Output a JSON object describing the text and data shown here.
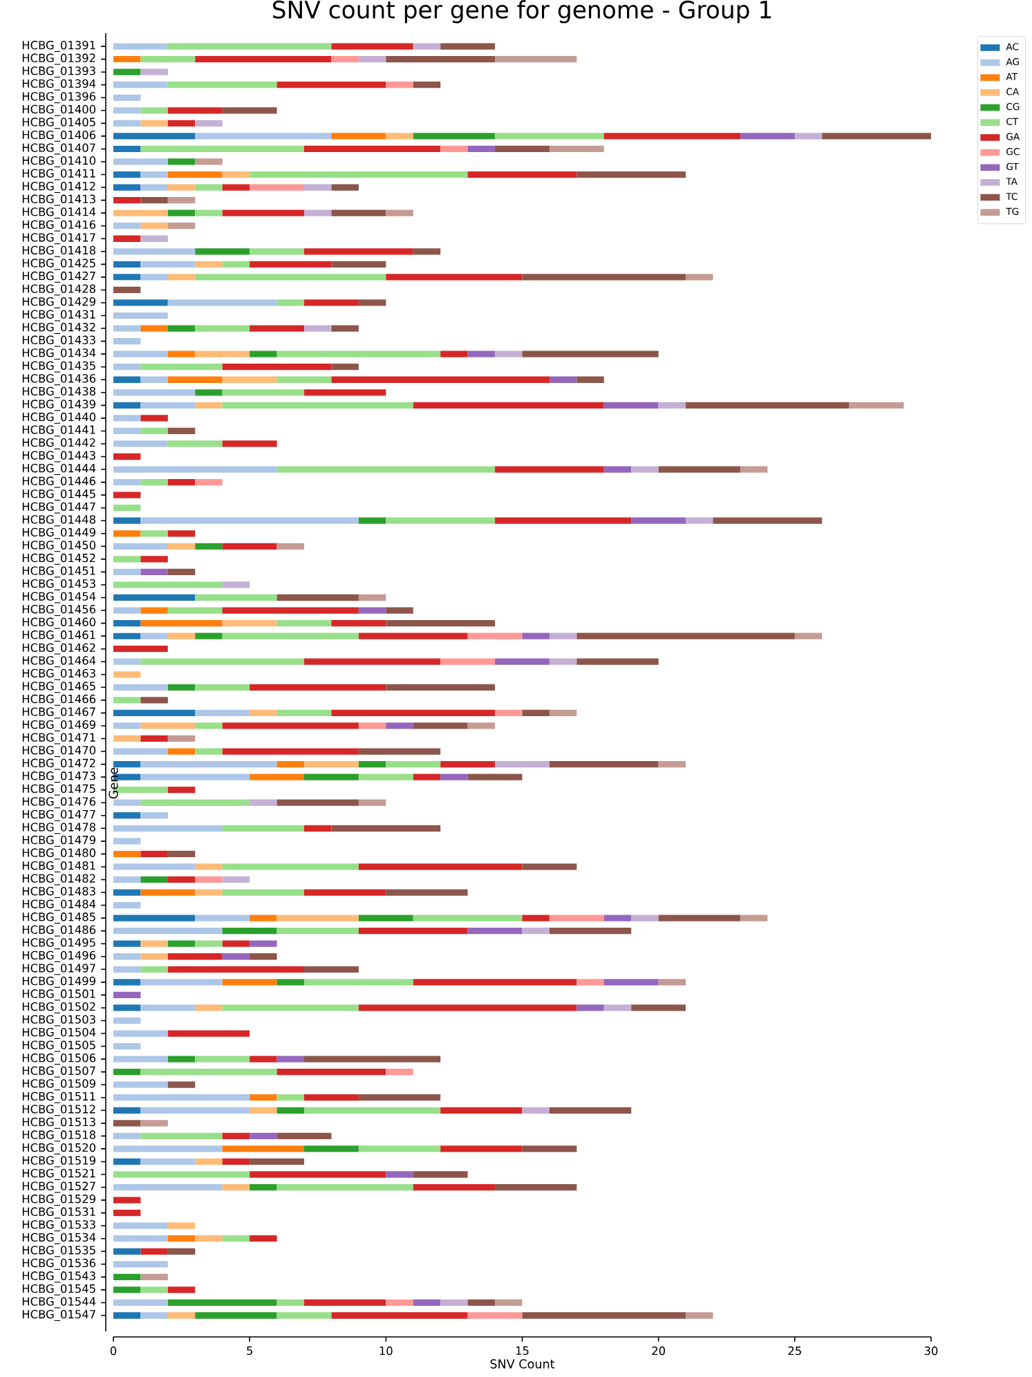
{
  "chart_data": {
    "type": "bar",
    "orientation": "horizontal",
    "stacked": true,
    "title": "SNV count per gene for genome - Group 1",
    "xlabel": "SNV Count",
    "ylabel": "Gene",
    "categories": [
      "HCBG_01391",
      "HCBG_01392",
      "HCBG_01393",
      "HCBG_01394",
      "HCBG_01396",
      "HCBG_01400",
      "HCBG_01405",
      "HCBG_01406",
      "HCBG_01407",
      "HCBG_01410",
      "HCBG_01411",
      "HCBG_01412",
      "HCBG_01413",
      "HCBG_01414",
      "HCBG_01416",
      "HCBG_01417",
      "HCBG_01418",
      "HCBG_01425",
      "HCBG_01427",
      "HCBG_01428",
      "HCBG_01429",
      "HCBG_01431",
      "HCBG_01432",
      "HCBG_01433",
      "HCBG_01434",
      "HCBG_01435",
      "HCBG_01436",
      "HCBG_01438",
      "HCBG_01439",
      "HCBG_01440",
      "HCBG_01441",
      "HCBG_01442",
      "HCBG_01443",
      "HCBG_01444",
      "HCBG_01446",
      "HCBG_01445",
      "HCBG_01447",
      "HCBG_01448",
      "HCBG_01449",
      "HCBG_01450",
      "HCBG_01452",
      "HCBG_01451",
      "HCBG_01453",
      "HCBG_01454",
      "HCBG_01456",
      "HCBG_01460",
      "HCBG_01461",
      "HCBG_01462",
      "HCBG_01464",
      "HCBG_01463",
      "HCBG_01465",
      "HCBG_01466",
      "HCBG_01467",
      "HCBG_01469",
      "HCBG_01471",
      "HCBG_01470",
      "HCBG_01472",
      "HCBG_01473",
      "HCBG_01475",
      "HCBG_01476",
      "HCBG_01477",
      "HCBG_01478",
      "HCBG_01479",
      "HCBG_01480",
      "HCBG_01481",
      "HCBG_01482",
      "HCBG_01483",
      "HCBG_01484",
      "HCBG_01485",
      "HCBG_01486",
      "HCBG_01495",
      "HCBG_01496",
      "HCBG_01497",
      "HCBG_01499",
      "HCBG_01501",
      "HCBG_01502",
      "HCBG_01503",
      "HCBG_01504",
      "HCBG_01505",
      "HCBG_01506",
      "HCBG_01507",
      "HCBG_01509",
      "HCBG_01511",
      "HCBG_01512",
      "HCBG_01513",
      "HCBG_01518",
      "HCBG_01520",
      "HCBG_01519",
      "HCBG_01521",
      "HCBG_01527",
      "HCBG_01529",
      "HCBG_01531",
      "HCBG_01533",
      "HCBG_01534",
      "HCBG_01535",
      "HCBG_01536",
      "HCBG_01543",
      "HCBG_01545",
      "HCBG_01544",
      "HCBG_01547"
    ],
    "series": [
      {
        "name": "AC",
        "color": "#1f77b4",
        "values": [
          null,
          null,
          null,
          null,
          null,
          null,
          null,
          3,
          1,
          null,
          1,
          1,
          null,
          null,
          null,
          null,
          null,
          1,
          1,
          null,
          2,
          null,
          null,
          null,
          null,
          null,
          1,
          null,
          1,
          null,
          null,
          null,
          null,
          null,
          null,
          null,
          null,
          1,
          null,
          null,
          null,
          null,
          null,
          3,
          null,
          1,
          1,
          null,
          null,
          null,
          null,
          null,
          3,
          null,
          null,
          null,
          1,
          1,
          null,
          null,
          1,
          null,
          null,
          null,
          null,
          null,
          1,
          null,
          3,
          null,
          1,
          null,
          null,
          1,
          null,
          1,
          null,
          null,
          null,
          null,
          null,
          null,
          null,
          1,
          null,
          null,
          null,
          1,
          null,
          null,
          null,
          null,
          null,
          null,
          1,
          null,
          null,
          null,
          null,
          1
        ]
      },
      {
        "name": "AG",
        "color": "#aec7e8",
        "values": [
          2,
          null,
          null,
          2,
          1,
          1,
          1,
          5,
          null,
          2,
          1,
          1,
          null,
          null,
          1,
          null,
          3,
          2,
          1,
          null,
          4,
          2,
          1,
          1,
          2,
          1,
          1,
          3,
          2,
          1,
          1,
          2,
          null,
          6,
          1,
          null,
          null,
          8,
          null,
          2,
          null,
          1,
          null,
          null,
          1,
          null,
          1,
          null,
          1,
          null,
          2,
          null,
          2,
          1,
          null,
          2,
          5,
          4,
          null,
          1,
          1,
          4,
          1,
          null,
          3,
          1,
          null,
          1,
          2,
          4,
          null,
          1,
          1,
          3,
          null,
          2,
          1,
          2,
          1,
          2,
          null,
          2,
          5,
          4,
          null,
          1,
          4,
          2,
          null,
          4,
          null,
          null,
          2,
          2,
          null,
          2,
          null,
          null,
          2,
          1
        ]
      },
      {
        "name": "AT",
        "color": "#ff7f0e",
        "values": [
          null,
          1,
          null,
          null,
          null,
          null,
          null,
          2,
          null,
          null,
          2,
          null,
          null,
          null,
          null,
          null,
          null,
          null,
          null,
          null,
          null,
          null,
          1,
          null,
          1,
          null,
          2,
          null,
          null,
          null,
          null,
          null,
          null,
          null,
          null,
          null,
          null,
          null,
          1,
          null,
          null,
          null,
          null,
          null,
          1,
          3,
          null,
          null,
          null,
          null,
          null,
          null,
          null,
          null,
          null,
          1,
          1,
          2,
          null,
          null,
          null,
          null,
          null,
          1,
          null,
          null,
          2,
          null,
          1,
          null,
          null,
          null,
          null,
          2,
          null,
          null,
          null,
          null,
          null,
          null,
          null,
          null,
          1,
          null,
          null,
          null,
          3,
          null,
          null,
          null,
          null,
          null,
          null,
          1,
          null,
          null,
          null,
          null,
          null,
          null
        ]
      },
      {
        "name": "CA",
        "color": "#ffbb78",
        "values": [
          null,
          null,
          null,
          null,
          null,
          null,
          1,
          1,
          null,
          null,
          1,
          1,
          null,
          2,
          1,
          null,
          null,
          1,
          1,
          null,
          null,
          null,
          null,
          null,
          2,
          null,
          2,
          null,
          1,
          null,
          null,
          null,
          null,
          null,
          null,
          null,
          null,
          null,
          null,
          1,
          null,
          null,
          null,
          null,
          null,
          2,
          1,
          null,
          null,
          1,
          null,
          null,
          1,
          2,
          1,
          null,
          2,
          null,
          null,
          null,
          null,
          null,
          null,
          null,
          1,
          null,
          1,
          null,
          3,
          null,
          1,
          1,
          null,
          null,
          null,
          1,
          null,
          null,
          null,
          null,
          null,
          null,
          null,
          1,
          null,
          null,
          null,
          1,
          null,
          1,
          null,
          null,
          1,
          1,
          null,
          null,
          null,
          null,
          null,
          1
        ]
      },
      {
        "name": "CG",
        "color": "#2ca02c",
        "values": [
          null,
          null,
          1,
          null,
          null,
          null,
          null,
          3,
          null,
          1,
          null,
          null,
          null,
          1,
          null,
          null,
          2,
          null,
          null,
          null,
          null,
          null,
          1,
          null,
          1,
          null,
          null,
          1,
          null,
          null,
          null,
          null,
          null,
          null,
          null,
          null,
          null,
          1,
          null,
          1,
          null,
          null,
          null,
          null,
          null,
          null,
          1,
          null,
          null,
          null,
          1,
          null,
          null,
          null,
          null,
          null,
          1,
          2,
          null,
          null,
          null,
          null,
          null,
          null,
          null,
          1,
          null,
          null,
          2,
          2,
          1,
          null,
          null,
          1,
          null,
          null,
          null,
          null,
          null,
          1,
          1,
          null,
          null,
          1,
          null,
          null,
          2,
          null,
          null,
          1,
          null,
          null,
          null,
          null,
          null,
          null,
          1,
          1,
          4,
          3
        ]
      },
      {
        "name": "CT",
        "color": "#98df8a",
        "values": [
          6,
          2,
          null,
          4,
          null,
          1,
          null,
          4,
          6,
          null,
          8,
          1,
          null,
          1,
          null,
          null,
          2,
          1,
          7,
          null,
          1,
          null,
          2,
          null,
          6,
          3,
          2,
          3,
          7,
          null,
          1,
          2,
          null,
          8,
          1,
          null,
          1,
          4,
          1,
          null,
          1,
          null,
          4,
          3,
          2,
          2,
          5,
          null,
          6,
          null,
          2,
          1,
          2,
          1,
          null,
          1,
          2,
          2,
          2,
          4,
          null,
          3,
          null,
          null,
          5,
          null,
          3,
          null,
          4,
          3,
          1,
          null,
          1,
          4,
          null,
          5,
          null,
          null,
          null,
          2,
          5,
          null,
          1,
          5,
          null,
          3,
          3,
          null,
          5,
          5,
          null,
          null,
          null,
          1,
          null,
          null,
          null,
          1,
          1,
          2
        ]
      },
      {
        "name": "GA",
        "color": "#d62728",
        "values": [
          3,
          5,
          null,
          4,
          null,
          2,
          1,
          5,
          5,
          null,
          4,
          1,
          1,
          3,
          null,
          1,
          4,
          3,
          5,
          null,
          2,
          null,
          2,
          null,
          1,
          4,
          8,
          3,
          7,
          1,
          null,
          2,
          1,
          4,
          1,
          1,
          null,
          5,
          1,
          2,
          1,
          null,
          null,
          null,
          5,
          2,
          4,
          2,
          5,
          null,
          5,
          null,
          6,
          5,
          1,
          5,
          2,
          1,
          1,
          null,
          null,
          1,
          null,
          1,
          6,
          1,
          3,
          null,
          1,
          4,
          1,
          2,
          5,
          6,
          null,
          8,
          null,
          3,
          null,
          1,
          4,
          null,
          2,
          3,
          null,
          1,
          3,
          1,
          5,
          3,
          1,
          1,
          null,
          1,
          1,
          null,
          null,
          1,
          3,
          5
        ]
      },
      {
        "name": "GC",
        "color": "#ff9896",
        "values": [
          null,
          1,
          null,
          1,
          null,
          null,
          null,
          null,
          1,
          null,
          null,
          2,
          null,
          null,
          null,
          null,
          null,
          null,
          null,
          null,
          null,
          null,
          null,
          null,
          null,
          null,
          null,
          null,
          null,
          null,
          null,
          null,
          null,
          null,
          1,
          null,
          null,
          null,
          null,
          null,
          null,
          null,
          null,
          null,
          null,
          null,
          2,
          null,
          2,
          null,
          null,
          null,
          1,
          1,
          null,
          null,
          null,
          null,
          null,
          null,
          null,
          null,
          null,
          null,
          null,
          1,
          null,
          null,
          2,
          null,
          null,
          null,
          null,
          1,
          null,
          null,
          null,
          null,
          null,
          null,
          1,
          null,
          null,
          null,
          null,
          null,
          null,
          null,
          null,
          null,
          null,
          null,
          null,
          null,
          null,
          null,
          null,
          null,
          1,
          2
        ]
      },
      {
        "name": "GT",
        "color": "#9467bd",
        "values": [
          null,
          null,
          null,
          null,
          null,
          null,
          null,
          2,
          1,
          null,
          null,
          null,
          null,
          null,
          null,
          null,
          null,
          null,
          null,
          null,
          null,
          null,
          null,
          null,
          1,
          null,
          1,
          null,
          2,
          null,
          null,
          null,
          null,
          1,
          null,
          null,
          null,
          2,
          null,
          null,
          null,
          1,
          null,
          null,
          1,
          null,
          1,
          null,
          2,
          null,
          null,
          null,
          null,
          1,
          null,
          null,
          null,
          1,
          null,
          null,
          null,
          null,
          null,
          null,
          null,
          null,
          null,
          null,
          1,
          2,
          1,
          1,
          null,
          2,
          1,
          1,
          null,
          null,
          null,
          1,
          null,
          null,
          null,
          null,
          null,
          1,
          null,
          null,
          1,
          null,
          null,
          null,
          null,
          null,
          null,
          null,
          null,
          null,
          1,
          null
        ]
      },
      {
        "name": "TA",
        "color": "#c5b0d5",
        "values": [
          1,
          1,
          1,
          null,
          null,
          null,
          1,
          1,
          null,
          null,
          null,
          1,
          null,
          1,
          null,
          1,
          null,
          null,
          null,
          null,
          null,
          null,
          1,
          null,
          1,
          null,
          null,
          null,
          1,
          null,
          null,
          null,
          null,
          1,
          null,
          null,
          null,
          1,
          null,
          null,
          null,
          null,
          1,
          null,
          null,
          null,
          1,
          null,
          1,
          null,
          null,
          null,
          null,
          null,
          null,
          null,
          2,
          null,
          null,
          1,
          null,
          null,
          null,
          null,
          null,
          1,
          null,
          null,
          1,
          1,
          null,
          null,
          null,
          null,
          null,
          1,
          null,
          null,
          null,
          null,
          null,
          null,
          null,
          1,
          null,
          null,
          null,
          null,
          null,
          null,
          null,
          null,
          null,
          null,
          null,
          null,
          null,
          null,
          1,
          null
        ]
      },
      {
        "name": "TC",
        "color": "#8c564b",
        "values": [
          2,
          4,
          null,
          1,
          null,
          2,
          null,
          4,
          2,
          null,
          4,
          1,
          1,
          2,
          null,
          null,
          1,
          2,
          6,
          1,
          1,
          null,
          1,
          null,
          5,
          1,
          1,
          null,
          6,
          null,
          1,
          null,
          null,
          3,
          null,
          null,
          null,
          4,
          null,
          null,
          null,
          1,
          null,
          3,
          1,
          4,
          8,
          null,
          3,
          null,
          4,
          1,
          1,
          2,
          null,
          3,
          4,
          2,
          null,
          3,
          null,
          4,
          null,
          1,
          2,
          null,
          3,
          null,
          3,
          3,
          null,
          1,
          2,
          null,
          null,
          2,
          null,
          null,
          null,
          5,
          null,
          1,
          3,
          3,
          1,
          2,
          2,
          2,
          2,
          3,
          null,
          null,
          null,
          null,
          1,
          null,
          null,
          null,
          1,
          6
        ]
      },
      {
        "name": "TG",
        "color": "#c49c94",
        "values": [
          null,
          3,
          null,
          null,
          null,
          null,
          null,
          null,
          2,
          1,
          null,
          null,
          1,
          1,
          1,
          null,
          null,
          null,
          1,
          null,
          null,
          null,
          null,
          null,
          null,
          null,
          null,
          null,
          2,
          null,
          null,
          null,
          null,
          1,
          null,
          null,
          null,
          null,
          null,
          1,
          null,
          null,
          null,
          1,
          null,
          null,
          1,
          null,
          null,
          null,
          null,
          null,
          1,
          1,
          1,
          null,
          1,
          null,
          null,
          1,
          null,
          null,
          null,
          null,
          null,
          null,
          null,
          null,
          1,
          null,
          null,
          null,
          null,
          1,
          null,
          null,
          null,
          null,
          null,
          null,
          null,
          null,
          null,
          null,
          1,
          null,
          null,
          null,
          null,
          null,
          null,
          null,
          null,
          null,
          null,
          null,
          1,
          null,
          1,
          1
        ]
      }
    ],
    "xlim": [
      0,
      30
    ],
    "xticks": [
      0,
      5,
      10,
      15,
      20,
      25,
      30
    ],
    "legend": "top right"
  }
}
